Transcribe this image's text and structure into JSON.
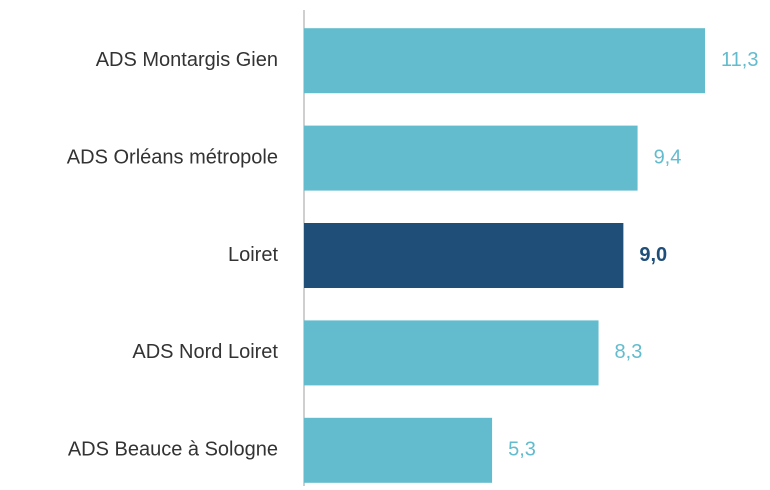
{
  "chart_data": {
    "type": "barh",
    "categories": [
      "ADS Montargis Gien",
      "ADS Orléans métropole",
      "Loiret",
      "ADS Nord Loiret",
      "ADS Beauce à Sologne"
    ],
    "values": [
      11.3,
      9.4,
      9.0,
      8.3,
      5.3
    ],
    "value_labels": [
      "11,3",
      "9,4",
      "9,0",
      "8,3",
      "5,3"
    ],
    "colors": [
      "#62bccd",
      "#62bccd",
      "#1f4e79",
      "#62bccd",
      "#62bccd"
    ],
    "value_label_bold": [
      false,
      false,
      true,
      false,
      false
    ]
  }
}
